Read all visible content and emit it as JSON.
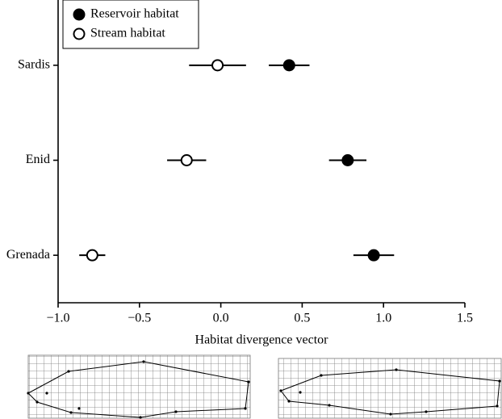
{
  "chart_data": {
    "type": "dot",
    "x_label": "Habitat divergence vector",
    "categories": [
      "Sardis",
      "Enid",
      "Grenada"
    ],
    "series": [
      {
        "name": "Reservoir habitat",
        "color": "#000000",
        "values": [
          0.42,
          0.78,
          0.94
        ],
        "errors": [
          0.125,
          0.115,
          0.125
        ]
      },
      {
        "name": "Stream habitat",
        "color": "#ffffff",
        "values": [
          -0.02,
          -0.21,
          -0.79
        ],
        "errors": [
          0.175,
          0.12,
          0.08
        ]
      }
    ],
    "xlim": [
      -1,
      1.5
    ],
    "xticks": [
      {
        "value": -1,
        "label": "−1.0"
      },
      {
        "value": -0.5,
        "label": "−0.5"
      },
      {
        "value": 0,
        "label": "0.0"
      },
      {
        "value": 0.5,
        "label": "0.5"
      },
      {
        "value": 1,
        "label": "1.0"
      },
      {
        "value": 1.5,
        "label": "1.5"
      }
    ],
    "legend": "upper left"
  }
}
